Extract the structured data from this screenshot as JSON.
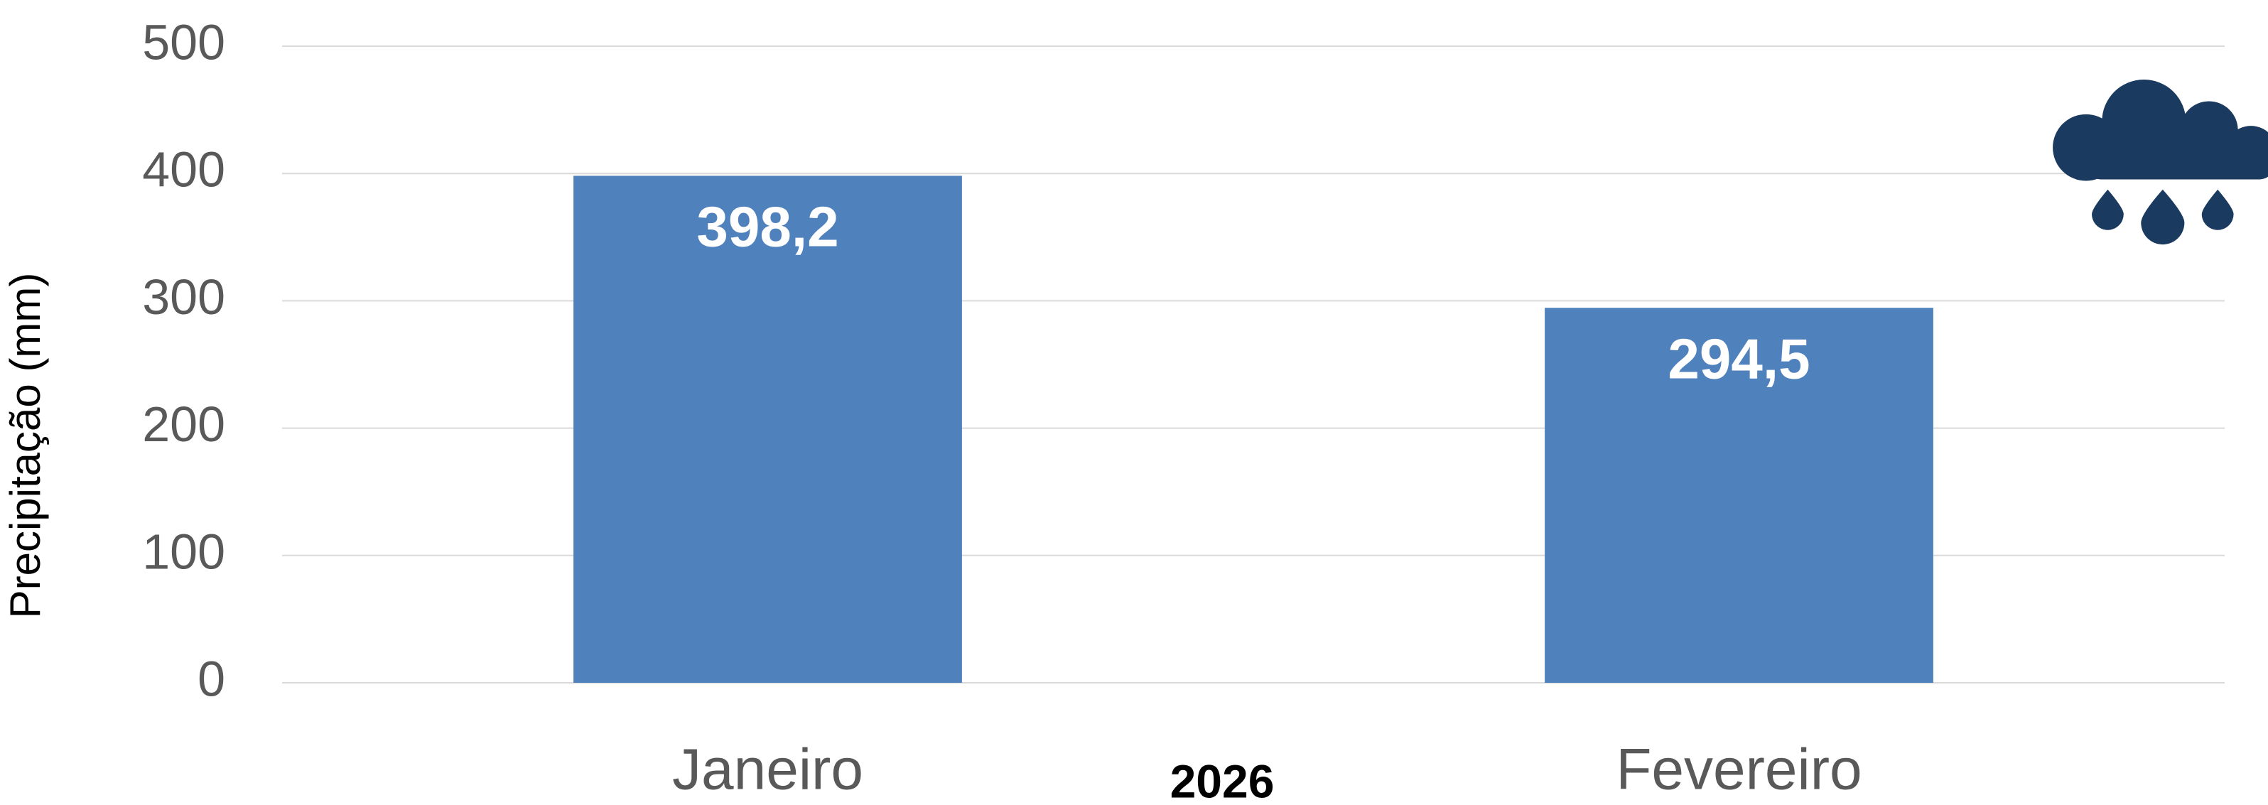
{
  "chart_data": {
    "type": "bar",
    "ylabel": "Precipitação (mm)",
    "xlabel": "2026",
    "categories": [
      "Janeiro",
      "Fevereiro"
    ],
    "values": [
      398.2,
      294.5
    ],
    "value_labels": [
      "398,2",
      "294,5"
    ],
    "color": "#4f81bd",
    "ylim": [
      0,
      500
    ],
    "yticks": [
      0,
      100,
      200,
      300,
      400,
      500
    ],
    "grid": true
  }
}
